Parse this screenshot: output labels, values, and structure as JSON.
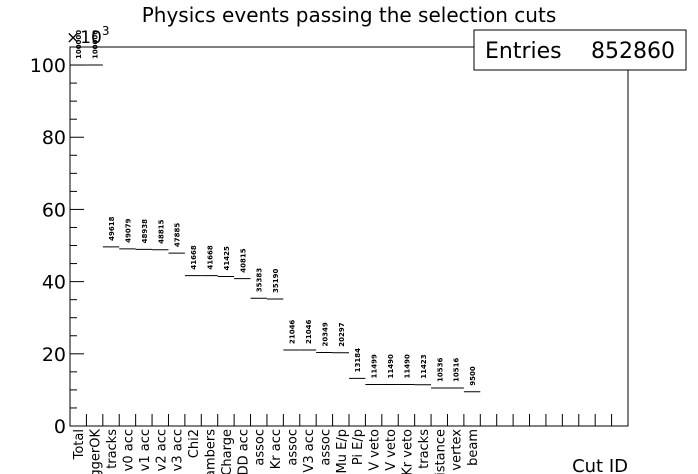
{
  "chart_data": {
    "type": "bar",
    "title": "Physics events passing the selection cuts",
    "xlabel": "Cut ID",
    "ylabel": "",
    "y_multiplier": "×10",
    "y_multiplier_exp": "3",
    "ylim": [
      0,
      105000
    ],
    "y_ticks": [
      0,
      20000,
      40000,
      60000,
      80000,
      100000
    ],
    "y_tick_labels": [
      "0",
      "20",
      "40",
      "60",
      "80",
      "100"
    ],
    "grid": false,
    "legend": "none",
    "stats_box": {
      "label": "Entries",
      "value": "852860",
      "placement": "top-right"
    },
    "categories": [
      "Total",
      "TriggerOK",
      "tracks",
      "v0 acc",
      "v1 acc",
      "v2 acc",
      "v3 acc",
      "Chi2",
      "Chambers",
      "Charge",
      "DD acc",
      "assoc",
      "Kr acc",
      "assoc",
      "V3 acc",
      "assoc",
      "Mu E/p",
      "Pi E/p",
      "V veto",
      "V veto",
      "Kr veto",
      "tracks",
      "distance",
      "vertex",
      "beam"
    ],
    "values": [
      100000,
      100000,
      49618,
      49079,
      48938,
      48815,
      47885,
      41668,
      41668,
      41425,
      40815,
      35383,
      35190,
      21046,
      21046,
      20349,
      20297,
      13184,
      11499,
      11490,
      11490,
      11423,
      10536,
      10516,
      9500
    ],
    "value_labels": [
      "100000",
      "100000",
      "49618",
      "49079",
      "48938",
      "48815",
      "47885",
      "41668",
      "41668",
      "41425",
      "40815",
      "35383",
      "35190",
      "21046",
      "21046",
      "20349",
      "20297",
      "13184",
      "11499",
      "11490",
      "11490",
      "11423",
      "10536",
      "10516",
      "9500"
    ],
    "n_bins": 34
  }
}
